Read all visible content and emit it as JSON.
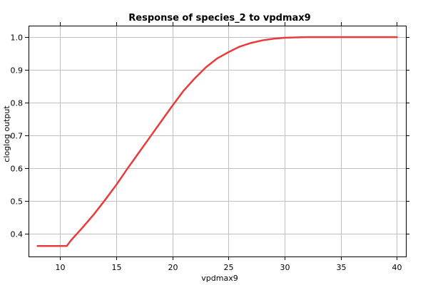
{
  "chart_data": {
    "type": "line",
    "title": "Response of species_2 to vpdmax9",
    "xlabel": "vpdmax9",
    "ylabel": "cloglog output",
    "xlim": [
      7.2,
      40.8
    ],
    "ylim": [
      0.33,
      1.035
    ],
    "x_ticks": [
      10,
      15,
      20,
      25,
      30,
      35,
      40
    ],
    "y_ticks": [
      0.4,
      0.5,
      0.6,
      0.7,
      0.8,
      0.9,
      1.0
    ],
    "x_tick_labels": [
      "10",
      "15",
      "20",
      "25",
      "30",
      "35",
      "40"
    ],
    "y_tick_labels": [
      "0.4",
      "0.5",
      "0.6",
      "0.7",
      "0.8",
      "0.9",
      "1.0"
    ],
    "grid": true,
    "series": [
      {
        "color": "#e83c3c",
        "x": [
          8.0,
          9.0,
          10.0,
          10.6,
          11.0,
          12.0,
          13.0,
          14.0,
          15.0,
          16.0,
          17.0,
          18.0,
          19.0,
          20.0,
          21.0,
          22.0,
          23.0,
          24.0,
          25.0,
          26.0,
          27.0,
          28.0,
          29.0,
          30.0,
          31.0,
          32.0,
          33.0,
          35.0,
          37.0,
          40.0
        ],
        "y": [
          0.362,
          0.362,
          0.362,
          0.362,
          0.38,
          0.418,
          0.458,
          0.502,
          0.548,
          0.598,
          0.646,
          0.694,
          0.742,
          0.79,
          0.836,
          0.874,
          0.908,
          0.935,
          0.954,
          0.971,
          0.982,
          0.99,
          0.995,
          0.998,
          0.999,
          1.0,
          1.0,
          1.0,
          1.0,
          1.0
        ]
      }
    ]
  },
  "colors": {
    "background": "#ffffff",
    "plot_background": "#ffffff",
    "grid": "#c0c0c0",
    "axis": "#000000",
    "series_line": "#e83c3c"
  }
}
